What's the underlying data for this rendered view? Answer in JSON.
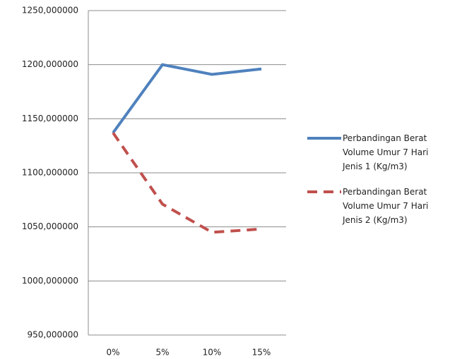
{
  "chart_data": {
    "type": "line",
    "categories": [
      "0%",
      "5%",
      "10%",
      "15%"
    ],
    "series": [
      {
        "name": "Perbandingan Berat Volume Umur 7 Hari Jenis 1 (Kg/m3)",
        "color": "#4f81bd",
        "dash": false,
        "values": [
          1137,
          1200,
          1191,
          1196
        ]
      },
      {
        "name": "Perbandingan Berat Volume Umur 7 Hari Jenis 2 (Kg/m3)",
        "color": "#c0504d",
        "dash": true,
        "values": [
          1137,
          1071,
          1045,
          1048
        ]
      }
    ],
    "ylim": [
      950,
      1250
    ],
    "yticks": [
      {
        "value": 950,
        "label": "950,000000"
      },
      {
        "value": 1000,
        "label": "1000,000000"
      },
      {
        "value": 1050,
        "label": "1050,000000"
      },
      {
        "value": 1100,
        "label": "1100,000000"
      },
      {
        "value": 1150,
        "label": "1150,000000"
      },
      {
        "value": 1200,
        "label": "1200,000000"
      },
      {
        "value": 1250,
        "label": "1250,000000"
      }
    ],
    "grid": true,
    "legend": "right"
  }
}
